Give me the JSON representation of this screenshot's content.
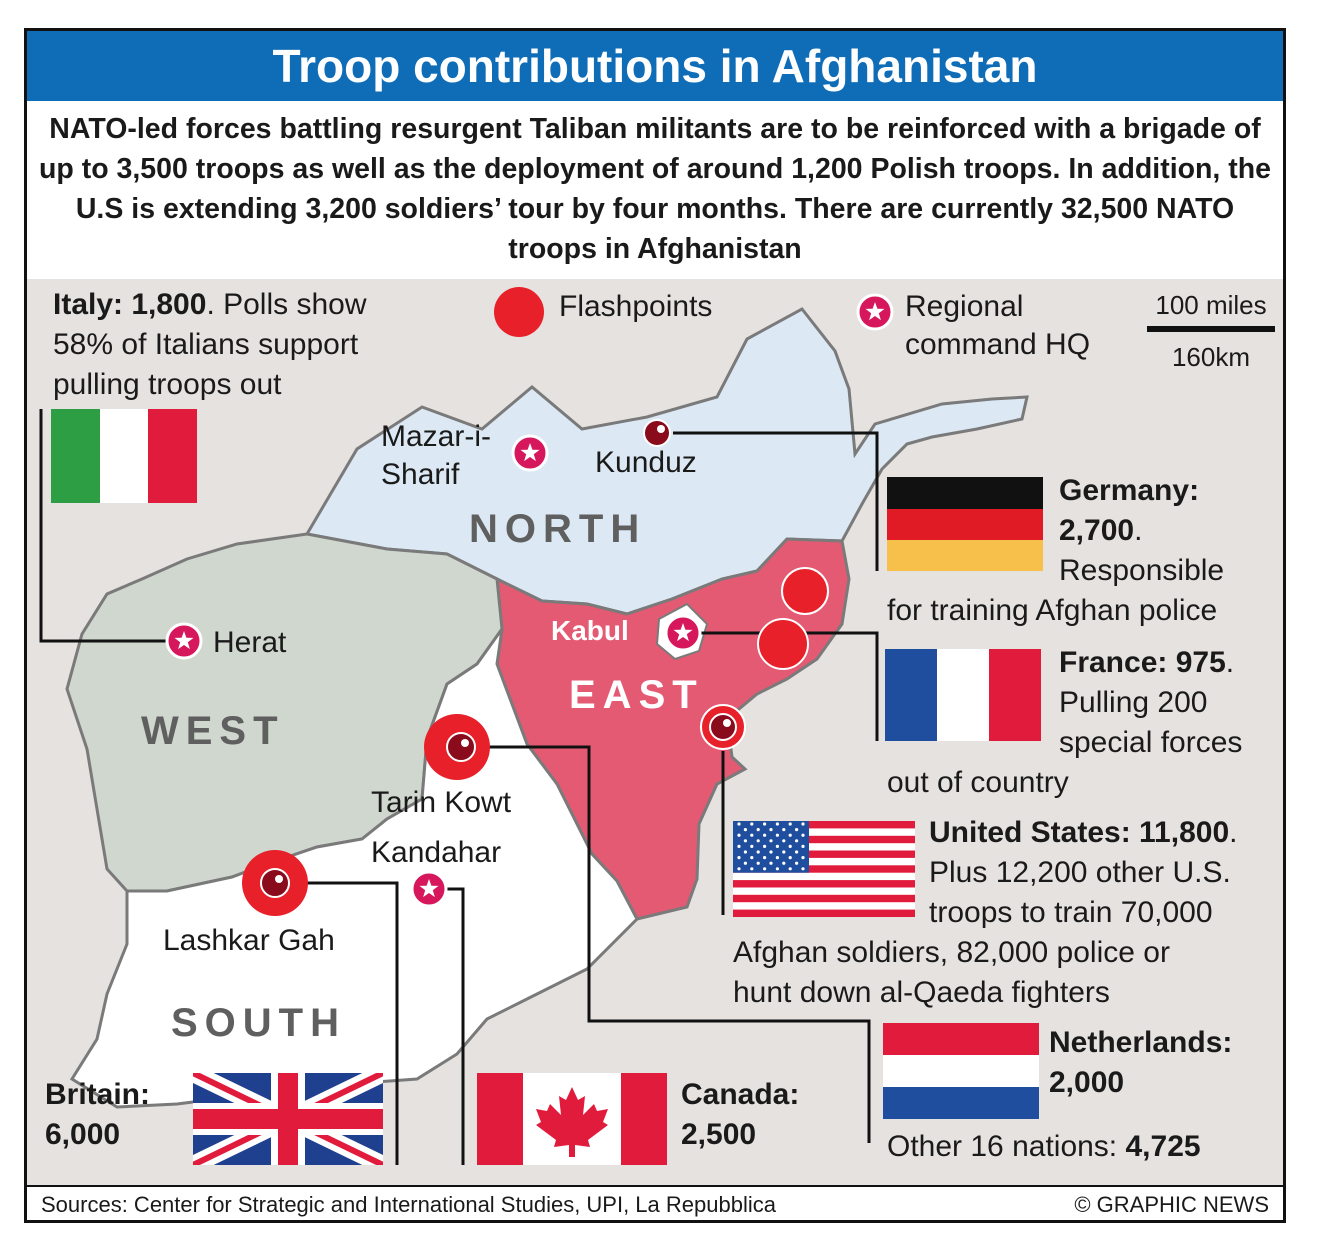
{
  "title": "Troop contributions in Afghanistan",
  "intro": "NATO-led forces battling resurgent Taliban militants are to be reinforced with a brigade of up to 3,500 troops as well as the deployment of around 1,200 Polish troops. In addition, the U.S is extending 3,200 soldiers’ tour by four months. There are currently 32,500 NATO troops in Afghanistan",
  "legend": {
    "flashpoints": "Flashpoints",
    "hq_line1": "Regional",
    "hq_line2": "command HQ"
  },
  "scale": {
    "miles": "100 miles",
    "km": "160km"
  },
  "regions": {
    "north": "NORTH",
    "west": "WEST",
    "east": "EAST",
    "south": "SOUTH"
  },
  "cities": {
    "mazar_1": "Mazar-i-",
    "mazar_2": "Sharif",
    "kunduz": "Kunduz",
    "herat": "Herat",
    "kabul": "Kabul",
    "tarin_kowt": "Tarin Kowt",
    "kandahar": "Kandahar",
    "lashkar_gah": "Lashkar Gah"
  },
  "countries": {
    "italy": {
      "name": "Italy: 1,800",
      "line1": ". Polls show",
      "line2": "58% of Italians support",
      "line3": "pulling troops out"
    },
    "germany": {
      "name": "Germany:",
      "count": "2,700",
      "line1": "Responsible",
      "line2": "for training Afghan police"
    },
    "france": {
      "name": "France: 975",
      "line1": "Pulling 200",
      "line2": "special forces",
      "line3": "out of country"
    },
    "usa": {
      "name": "United States: 11,800",
      "line1": "Plus 12,200 other U.S.",
      "line2": "troops to train 70,000",
      "line3": "Afghan soldiers, 82,000 police or",
      "line4": "hunt down al-Qaeda fighters"
    },
    "netherlands": {
      "name": "Netherlands:",
      "count": "2,000"
    },
    "other": {
      "label": "Other 16 nations: ",
      "count": "4,725"
    },
    "britain": {
      "name": "Britain:",
      "count": "6,000"
    },
    "canada": {
      "name": "Canada:",
      "count": "2,500"
    }
  },
  "footer": {
    "sources": "Sources: Center for Strategic and International Studies, UPI, La Repubblica",
    "credit": "© GRAPHIC NEWS"
  },
  "colors": {
    "title_bar": "#0f6db8",
    "north": "#dce9f4",
    "west": "#cfd7ce",
    "east": "#e45a73",
    "south": "#ffffff",
    "flashpoint": "#e8202a",
    "background": "#e5e2e0"
  }
}
